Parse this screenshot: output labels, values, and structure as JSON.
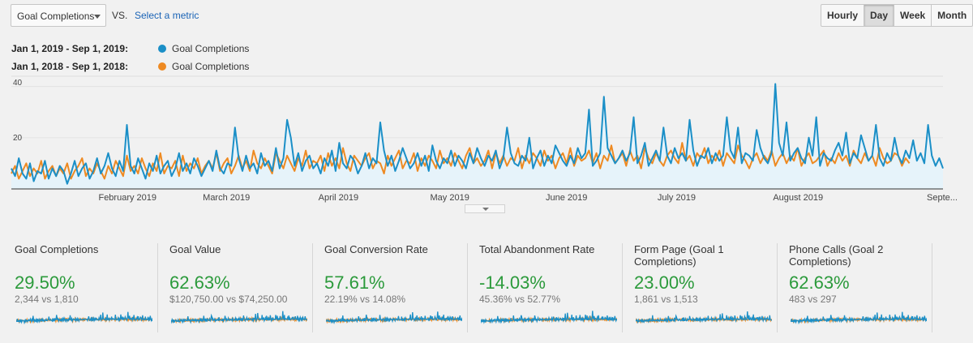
{
  "toolbar": {
    "metric_select": "Goal Completions",
    "vs_label": "VS.",
    "select_metric_link": "Select a metric",
    "granularity": [
      "Hourly",
      "Day",
      "Week",
      "Month"
    ],
    "granularity_active": "Day"
  },
  "legend": [
    {
      "date_range": "Jan 1, 2019 - Sep 1, 2019:",
      "metric": "Goal Completions",
      "color": "#1b8fc7"
    },
    {
      "date_range": "Jan 1, 2018 - Sep 1, 2018:",
      "metric": "Goal Completions",
      "color": "#ee8a22"
    }
  ],
  "colors": {
    "series_2019": "#1b8fc7",
    "series_2018": "#ee8a22",
    "area_fill": "#e6f3fa",
    "positive": "#2b9a3b"
  },
  "chart_data": {
    "type": "line",
    "y_ticks": [
      {
        "value": 40,
        "label": "40"
      },
      {
        "value": 20,
        "label": "20"
      }
    ],
    "ylim": [
      0,
      44
    ],
    "x_tick_labels": [
      "February 2019",
      "March 2019",
      "April 2019",
      "May 2019",
      "June 2019",
      "July 2019",
      "August 2019",
      "Septe..."
    ],
    "x_tick_days": [
      31,
      59,
      90,
      120,
      151,
      181,
      212,
      243
    ],
    "area_under": "series 1",
    "series": [
      {
        "color": "#1b8fc7",
        "values": [
          8,
          5,
          12,
          6,
          4,
          10,
          3,
          7,
          6,
          11,
          4,
          8,
          5,
          9,
          7,
          2,
          6,
          11,
          5,
          8,
          10,
          4,
          7,
          12,
          6,
          9,
          14,
          8,
          5,
          11,
          7,
          25,
          9,
          6,
          12,
          8,
          4,
          10,
          7,
          13,
          6,
          9,
          11,
          5,
          8,
          14,
          7,
          10,
          6,
          12,
          9,
          5,
          8,
          11,
          7,
          15,
          8,
          6,
          10,
          9,
          24,
          12,
          7,
          13,
          8,
          10,
          6,
          14,
          9,
          11,
          7,
          16,
          8,
          12,
          27,
          20,
          9,
          14,
          7,
          11,
          13,
          8,
          10,
          6,
          12,
          9,
          15,
          7,
          18,
          10,
          8,
          13,
          11,
          6,
          9,
          14,
          8,
          12,
          10,
          26,
          15,
          9,
          13,
          7,
          11,
          16,
          12,
          8,
          10,
          14,
          9,
          13,
          7,
          17,
          11,
          8,
          12,
          10,
          15,
          9,
          13,
          11,
          8,
          14,
          10,
          16,
          12,
          9,
          13,
          11,
          15,
          8,
          12,
          24,
          14,
          10,
          9,
          13,
          11,
          20,
          8,
          12,
          15,
          9,
          13,
          10,
          17,
          14,
          11,
          9,
          13,
          10,
          16,
          12,
          14,
          31,
          9,
          11,
          14,
          36,
          16,
          13,
          10,
          12,
          15,
          11,
          14,
          28,
          10,
          13,
          18,
          9,
          12,
          15,
          11,
          24,
          13,
          10,
          16,
          12,
          14,
          11,
          27,
          15,
          9,
          13,
          12,
          16,
          10,
          14,
          11,
          13,
          28,
          15,
          12,
          24,
          10,
          14,
          13,
          11,
          23,
          16,
          12,
          10,
          14,
          41,
          18,
          13,
          26,
          11,
          14,
          16,
          12,
          10,
          20,
          13,
          28,
          9,
          14,
          12,
          11,
          15,
          18,
          13,
          22,
          10,
          14,
          12,
          21,
          16,
          11,
          13,
          25,
          12,
          9,
          14,
          11,
          20,
          13,
          10,
          15,
          12,
          19,
          11,
          14,
          10,
          25,
          13,
          9,
          12,
          8
        ]
      },
      {
        "color": "#ee8a22",
        "values": [
          6,
          9,
          4,
          7,
          10,
          5,
          8,
          6,
          11,
          4,
          7,
          9,
          5,
          8,
          6,
          10,
          4,
          7,
          9,
          12,
          5,
          8,
          6,
          10,
          7,
          4,
          9,
          6,
          11,
          8,
          5,
          13,
          7,
          9,
          6,
          12,
          8,
          5,
          10,
          7,
          14,
          6,
          9,
          8,
          11,
          5,
          13,
          7,
          10,
          8,
          12,
          6,
          9,
          11,
          8,
          14,
          7,
          10,
          12,
          6,
          9,
          13,
          8,
          11,
          7,
          15,
          10,
          8,
          12,
          9,
          6,
          14,
          11,
          8,
          13,
          10,
          7,
          12,
          9,
          15,
          8,
          11,
          10,
          13,
          7,
          14,
          9,
          12,
          8,
          16,
          10,
          7,
          13,
          11,
          9,
          12,
          14,
          8,
          11,
          10,
          6,
          13,
          9,
          12,
          15,
          8,
          11,
          10,
          14,
          7,
          12,
          9,
          13,
          11,
          8,
          15,
          10,
          12,
          9,
          14,
          11,
          8,
          13,
          16,
          10,
          12,
          9,
          11,
          15,
          8,
          14,
          10,
          13,
          9,
          12,
          11,
          16,
          8,
          13,
          10,
          14,
          12,
          9,
          15,
          11,
          13,
          8,
          12,
          14,
          10,
          16,
          9,
          13,
          11,
          12,
          15,
          10,
          14,
          8,
          13,
          11,
          17,
          10,
          12,
          14,
          9,
          15,
          11,
          13,
          8,
          16,
          12,
          10,
          14,
          11,
          9,
          13,
          15,
          12,
          10,
          18,
          11,
          13,
          9,
          14,
          12,
          16,
          10,
          13,
          11,
          15,
          9,
          14,
          12,
          10,
          17,
          13,
          11,
          8,
          12,
          14,
          10,
          13,
          11,
          15,
          9,
          12,
          14,
          10,
          13,
          11,
          16,
          9,
          12,
          14,
          10,
          11,
          13,
          15,
          9,
          12,
          10,
          14,
          11,
          13,
          9,
          15,
          12,
          10,
          14,
          11,
          13,
          9,
          16,
          12,
          10,
          11,
          14,
          13,
          9,
          12,
          10
        ]
      }
    ]
  },
  "scorecards": [
    {
      "title": "Goal Completions",
      "change": "29.50%",
      "comparison": "2,344 vs 1,810"
    },
    {
      "title": "Goal Value",
      "change": "62.63%",
      "comparison": "$120,750.00 vs $74,250.00"
    },
    {
      "title": "Goal Conversion Rate",
      "change": "57.61%",
      "comparison": "22.19% vs 14.08%"
    },
    {
      "title": "Total Abandonment Rate",
      "change": "-14.03%",
      "comparison": "45.36% vs 52.77%"
    },
    {
      "title": "Form Page (Goal 1 Completions)",
      "change": "23.00%",
      "comparison": "1,861 vs 1,513"
    },
    {
      "title": "Phone Calls (Goal 2 Completions)",
      "change": "62.63%",
      "comparison": "483 vs 297"
    }
  ]
}
